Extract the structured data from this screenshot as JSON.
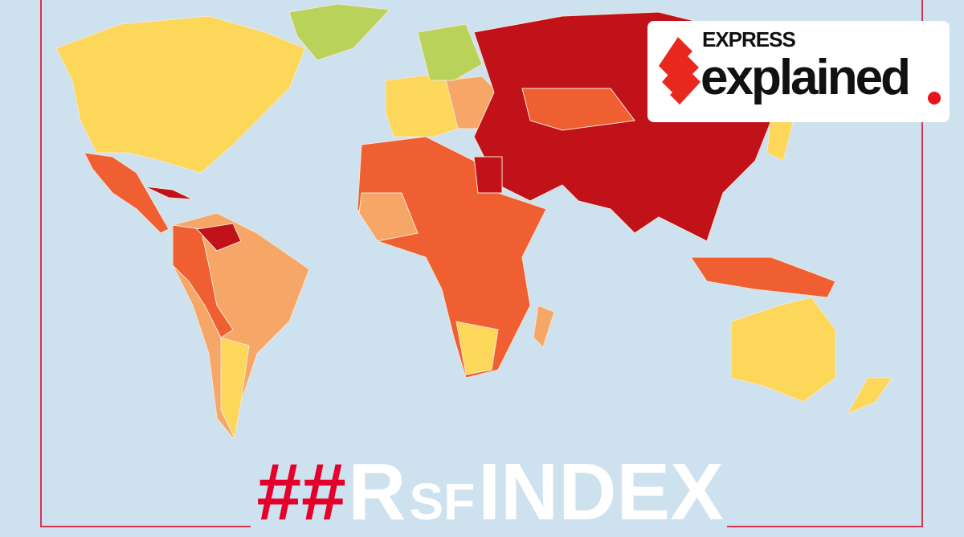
{
  "brand": {
    "line1": "EXPRESS",
    "line2": "explained",
    "accent_color": "#e8141b"
  },
  "hashtag": {
    "symbol": "#",
    "r": "R",
    "sf": "SF",
    "index": "INDEX",
    "hash_color": "#e4002b"
  },
  "map": {
    "category_colors": {
      "good": "#b8d25a",
      "satisfactory": "#fdd75a",
      "problematic": "#f6a767",
      "difficult": "#ef5f31",
      "very_serious": "#c01218"
    }
  }
}
